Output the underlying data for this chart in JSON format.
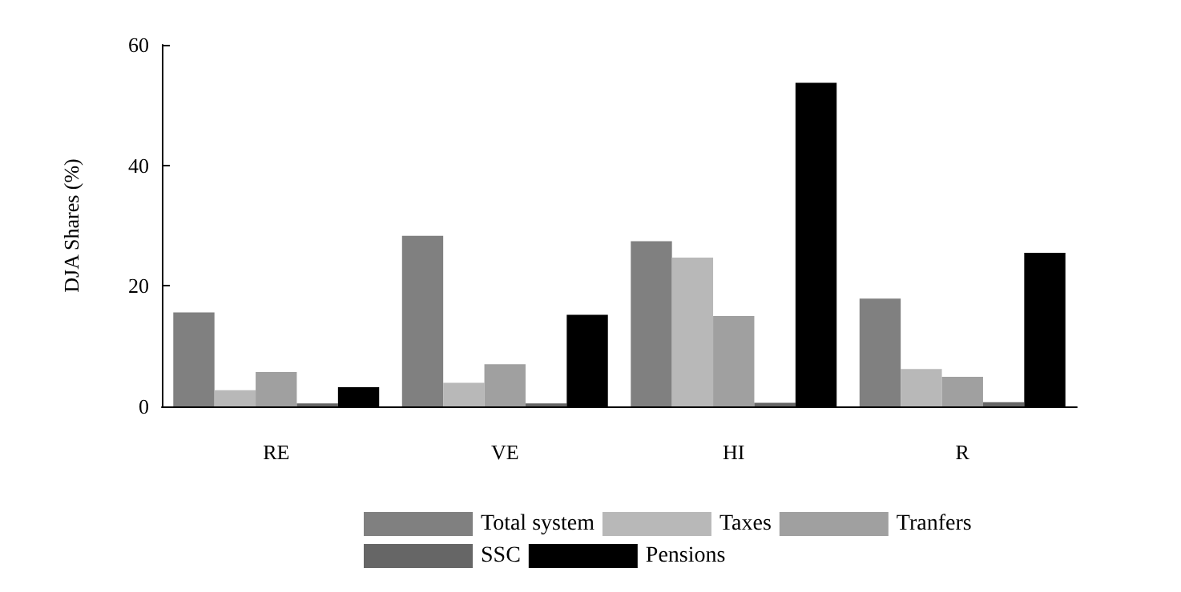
{
  "chart_data": {
    "type": "bar",
    "ylabel": "DJA Shares (%)",
    "categories": [
      "RE",
      "VE",
      "HI",
      "R"
    ],
    "series": [
      {
        "name": "Total system",
        "color": "#808080",
        "values": [
          15.6,
          28.3,
          27.4,
          17.9
        ]
      },
      {
        "name": "Taxes",
        "color": "#b8b8b8",
        "values": [
          2.7,
          3.9,
          24.7,
          6.2
        ]
      },
      {
        "name": "Tranfers",
        "color": "#a0a0a0",
        "values": [
          5.7,
          7.0,
          15.0,
          4.9
        ]
      },
      {
        "name": "SSC",
        "color": "#666666",
        "values": [
          0.5,
          0.5,
          0.6,
          0.7
        ]
      },
      {
        "name": "Pensions",
        "color": "#000000",
        "values": [
          3.2,
          15.2,
          53.7,
          25.5
        ]
      }
    ],
    "ylim": [
      0,
      60
    ],
    "yticks": [
      0,
      20,
      40,
      60
    ],
    "grid": false,
    "legend": "bottom"
  }
}
